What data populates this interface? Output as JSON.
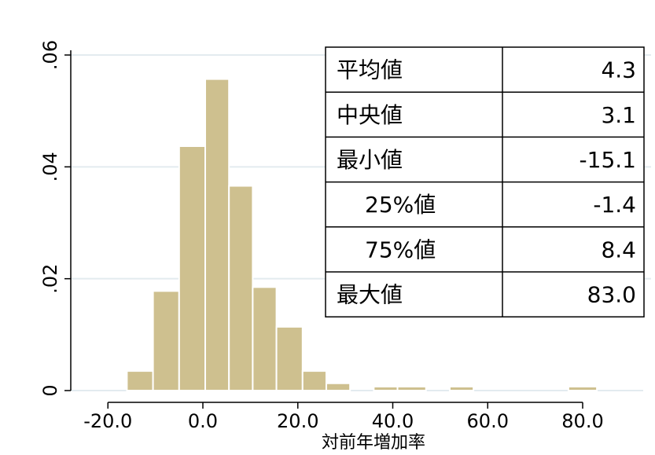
{
  "chart_data": {
    "type": "bar",
    "xlabel": "対前年増加率",
    "ylabel": "",
    "title": "",
    "xlim": [
      -22,
      83
    ],
    "ylim": [
      0,
      0.06
    ],
    "x_ticks": [
      -20,
      0,
      20,
      40,
      60,
      80
    ],
    "x_tick_labels": [
      "-20.0",
      "0.0",
      "20.0",
      "40.0",
      "60.0",
      "80.0"
    ],
    "y_ticks": [
      0,
      0.02,
      0.04,
      0.06
    ],
    "y_tick_labels": [
      "0",
      ".02",
      ".04",
      ".06"
    ],
    "grid": true,
    "bars": [
      {
        "x0": -16,
        "x1": -10.5,
        "density": 0.0035
      },
      {
        "x0": -10.5,
        "x1": -5,
        "density": 0.0178
      },
      {
        "x0": -5,
        "x1": 0.5,
        "density": 0.0437
      },
      {
        "x0": 0.5,
        "x1": 5.5,
        "density": 0.0557
      },
      {
        "x0": 5.5,
        "x1": 10.5,
        "density": 0.0366
      },
      {
        "x0": 10.5,
        "x1": 15.5,
        "density": 0.0185
      },
      {
        "x0": 15.5,
        "x1": 21,
        "density": 0.0114
      },
      {
        "x0": 21,
        "x1": 26,
        "density": 0.0035
      },
      {
        "x0": 26,
        "x1": 31,
        "density": 0.0013
      },
      {
        "x0": 36,
        "x1": 41,
        "density": 0.0007
      },
      {
        "x0": 41,
        "x1": 47,
        "density": 0.0007
      },
      {
        "x0": 52,
        "x1": 57,
        "density": 0.0007
      },
      {
        "x0": 77,
        "x1": 83,
        "density": 0.0007
      }
    ],
    "bar_color": "#cec08f",
    "bar_edge_color": "#ffffff",
    "grid_color": "#e3ebef"
  },
  "stats_table": {
    "rows": [
      {
        "label": "平均値",
        "value": "4.3",
        "indent": false
      },
      {
        "label": "中央値",
        "value": "3.1",
        "indent": false
      },
      {
        "label": "最小値",
        "value": "-15.1",
        "indent": false
      },
      {
        "label": "25%値",
        "value": "-1.4",
        "indent": true
      },
      {
        "label": "75%値",
        "value": "8.4",
        "indent": true
      },
      {
        "label": "最大値",
        "value": "83.0",
        "indent": false
      }
    ]
  }
}
